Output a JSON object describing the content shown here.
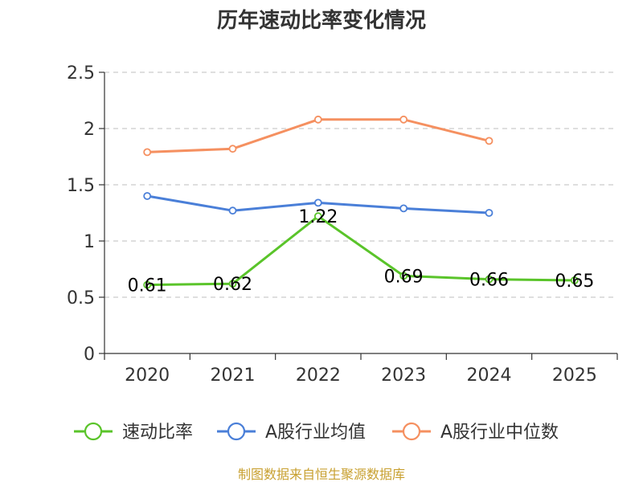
{
  "chart_data": {
    "type": "line",
    "title": "历年速动比率变化情况",
    "categories": [
      "2020",
      "2021",
      "2022",
      "2023",
      "2024",
      "2025"
    ],
    "ylim": [
      0,
      2.5
    ],
    "yticks": [
      "0",
      "0.5",
      "1",
      "1.5",
      "2",
      "2.5"
    ],
    "grid": true,
    "legend_position": "bottom",
    "series": [
      {
        "name": "速动比率",
        "color": "#5ac42a",
        "values": [
          0.61,
          0.62,
          1.22,
          0.69,
          0.66,
          0.65
        ],
        "labels": [
          "0.61",
          "0.62",
          "1.22",
          "0.69",
          "0.66",
          "0.65"
        ]
      },
      {
        "name": "A股行业均值",
        "color": "#4a7fd8",
        "values": [
          1.4,
          1.27,
          1.34,
          1.29,
          1.25,
          null
        ]
      },
      {
        "name": "A股行业中位数",
        "color": "#f59060",
        "values": [
          1.79,
          1.82,
          2.08,
          2.08,
          1.89,
          null
        ]
      }
    ],
    "source": "制图数据来自恒生聚源数据库"
  }
}
